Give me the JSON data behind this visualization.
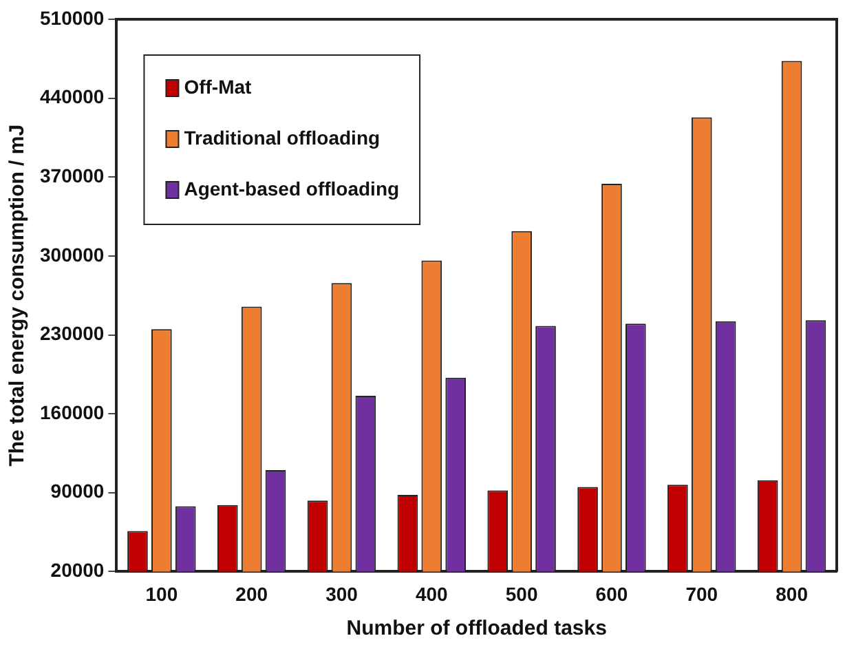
{
  "chart_data": {
    "type": "bar",
    "xlabel": "Number of offloaded tasks",
    "ylabel": "The total energy consumption / mJ",
    "categories": [
      "100",
      "200",
      "300",
      "400",
      "500",
      "600",
      "700",
      "800"
    ],
    "series": [
      {
        "name": "Off-Mat",
        "color": "#c00000",
        "values": [
          56000,
          79000,
          83000,
          88000,
          92000,
          95000,
          97000,
          101000
        ]
      },
      {
        "name": "Traditional offloading",
        "color": "#ed7d31",
        "values": [
          235000,
          255000,
          276000,
          296000,
          322000,
          364000,
          423000,
          473000
        ]
      },
      {
        "name": "Agent-based offloading",
        "color": "#7030a0",
        "values": [
          78000,
          110000,
          176000,
          192000,
          238000,
          240000,
          242000,
          243000
        ]
      }
    ],
    "ylim": [
      20000,
      510000
    ],
    "yticks": [
      20000,
      90000,
      160000,
      230000,
      300000,
      370000,
      440000,
      510000
    ],
    "grid": false,
    "legend": "top left"
  }
}
